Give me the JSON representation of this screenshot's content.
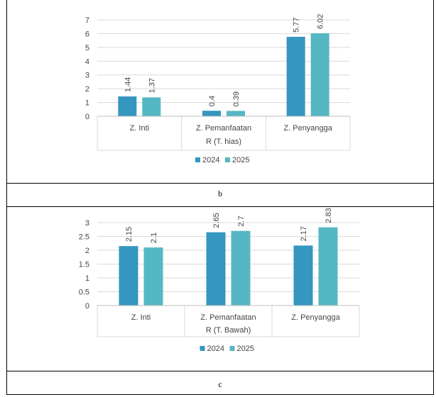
{
  "captions": {
    "b": "b",
    "c": "c"
  },
  "chart_data": [
    {
      "type": "bar",
      "categories": [
        "Z. Inti",
        "Z. Pemanfaatan",
        "Z. Penyangga"
      ],
      "series": [
        {
          "name": "2024",
          "values": [
            1.44,
            0.4,
            5.77
          ],
          "color": "#3596BF"
        },
        {
          "name": "2025",
          "values": [
            1.37,
            0.39,
            6.02
          ],
          "color": "#55B7C3"
        }
      ],
      "xlabel": "R (T. hias)",
      "ylim": [
        0,
        7
      ],
      "yticks": [
        "0",
        "1",
        "2",
        "3",
        "4",
        "5",
        "6",
        "7"
      ],
      "data_labels": [
        [
          "1.44",
          "0.4",
          "5.77"
        ],
        [
          "1.37",
          "0.39",
          "6.02"
        ]
      ],
      "grid": true,
      "legend": "bottom"
    },
    {
      "type": "bar",
      "categories": [
        "Z. Inti",
        "Z. Pemanfaatan",
        "Z. Penyangga"
      ],
      "series": [
        {
          "name": "2024",
          "values": [
            2.15,
            2.65,
            2.17
          ],
          "color": "#3596BF"
        },
        {
          "name": "2025",
          "values": [
            2.1,
            2.7,
            2.83
          ],
          "color": "#55B7C3"
        }
      ],
      "xlabel": "R (T. Bawah)",
      "ylim": [
        0,
        3
      ],
      "yticks": [
        "0",
        "0.5",
        "1",
        "1.5",
        "2",
        "2.5",
        "3"
      ],
      "data_labels": [
        [
          "2.15",
          "2.65",
          "2.17"
        ],
        [
          "2.1",
          "2.7",
          "2.83"
        ]
      ],
      "grid": true,
      "legend": "bottom"
    }
  ]
}
